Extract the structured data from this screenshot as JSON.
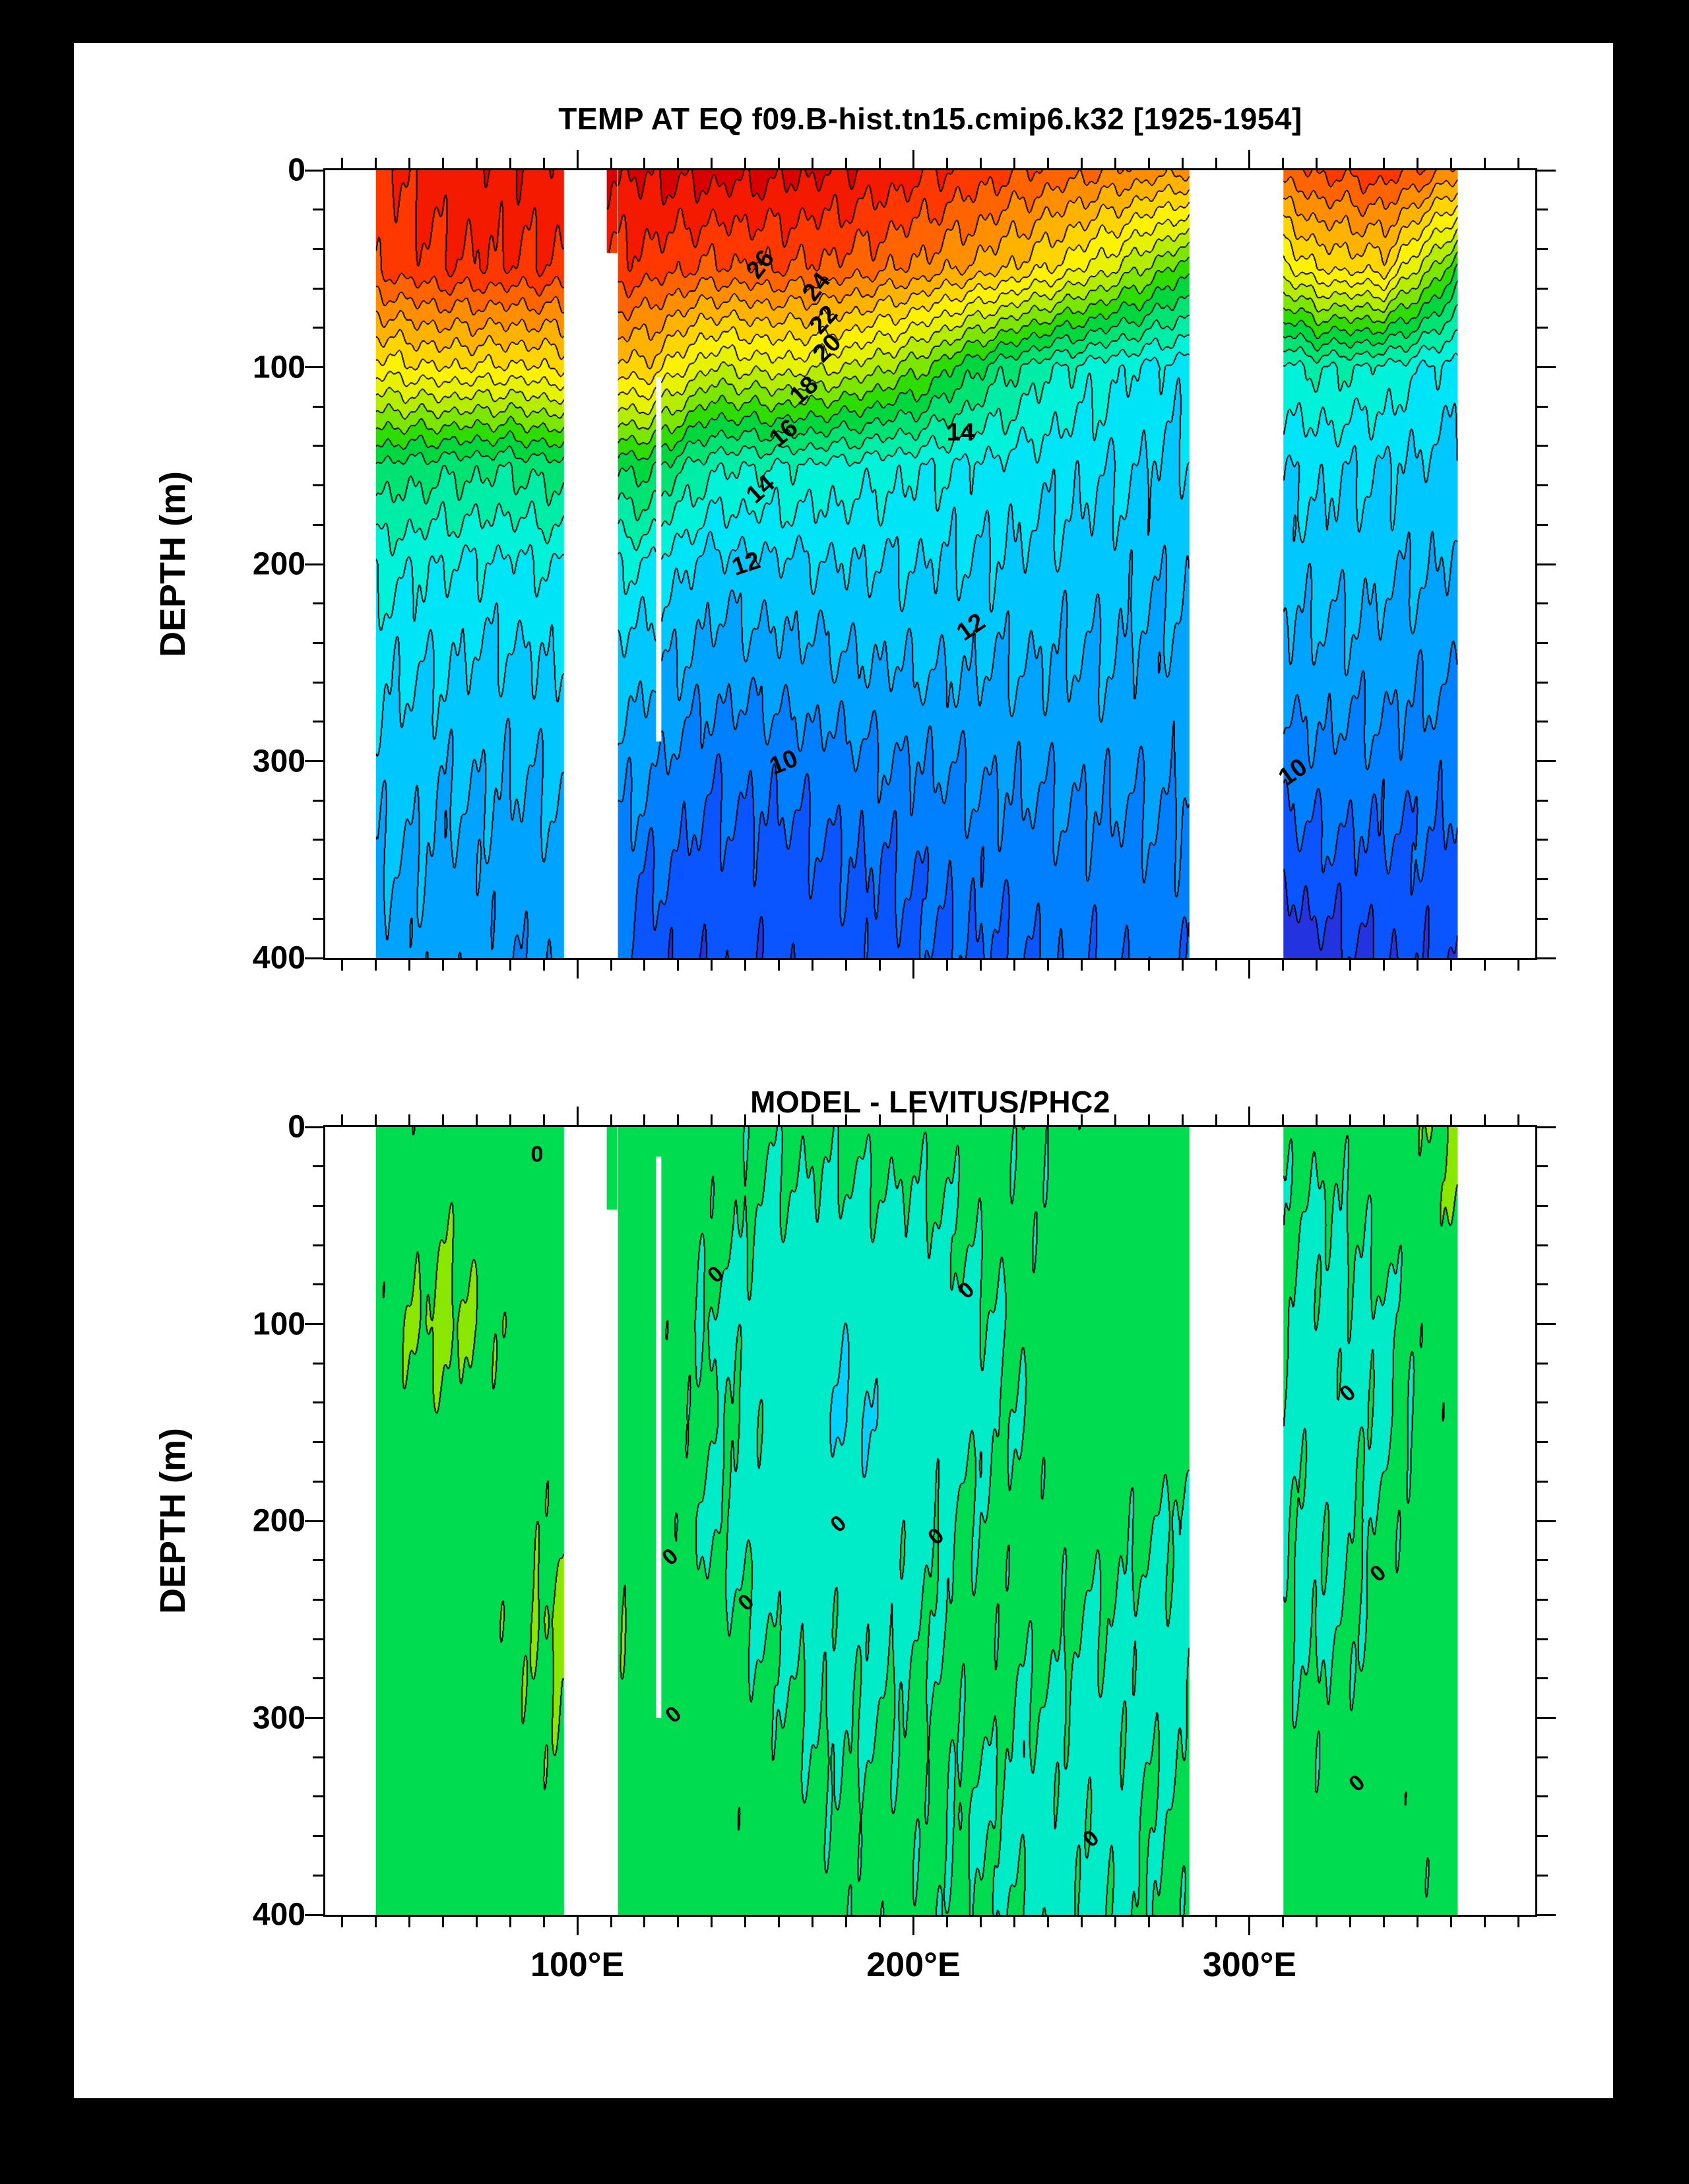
{
  "colors": {
    "frame": "#000000",
    "page": "#ffffff",
    "contour_line": "#000000"
  },
  "axes": {
    "x": {
      "min": 25,
      "max": 385,
      "minor_step": 10,
      "major": [
        100,
        200,
        300
      ],
      "tick_labels": [
        {
          "lon": 100,
          "text": "100°E"
        },
        {
          "lon": 200,
          "text": "200°E"
        },
        {
          "lon": 300,
          "text": "300°E"
        }
      ]
    },
    "y": {
      "min": 0,
      "max": 400,
      "minor_step": 20,
      "major": [
        0,
        100,
        200,
        300,
        400
      ]
    }
  },
  "palettes": {
    "temp": {
      "min": 7,
      "step": 1,
      "colors": [
        "#7b3fd4",
        "#2333e0",
        "#0a55ff",
        "#007fff",
        "#00a4ff",
        "#00c8ff",
        "#00e4f8",
        "#00f2d8",
        "#00eda8",
        "#00e372",
        "#00d73e",
        "#2fdc00",
        "#7ce600",
        "#b6ec00",
        "#e6f200",
        "#fff200",
        "#ffd500",
        "#ffb300",
        "#ff8f00",
        "#ff6400",
        "#ff3800",
        "#f31a00",
        "#d90000"
      ]
    },
    "diff": {
      "min": -2,
      "step": 1,
      "colors": [
        "#00d2ff",
        "#00ecc8",
        "#00dc50",
        "#8ae800"
      ]
    }
  },
  "chart_data": [
    {
      "type": "heatmap",
      "title": "TEMP AT EQ f09.B-hist.tn15.cmip6.k32 [1925-1954]",
      "ylabel": "DEPTH (m)",
      "palette": "temp",
      "xlim": [
        25,
        385
      ],
      "ylim": [
        0,
        400
      ],
      "y_inverted": true,
      "contour_interval": 1,
      "x": [
        40,
        60,
        80,
        100,
        120,
        140,
        160,
        180,
        200,
        220,
        240,
        260,
        280,
        300,
        320,
        340,
        352,
        362
      ],
      "depth": [
        0,
        50,
        100,
        150,
        200,
        250,
        300,
        350,
        400
      ],
      "values": [
        [
          27.8,
          28.6,
          28.8,
          28.8,
          29.2,
          29.4,
          29.3,
          29.0,
          28.4,
          27.6,
          26.8,
          26.0,
          25.2,
          26.0,
          27.2,
          27.6,
          26.8,
          25.6
        ],
        [
          27.2,
          27.9,
          27.9,
          27.8,
          27.6,
          26.8,
          27.0,
          26.6,
          25.8,
          24.6,
          23.0,
          21.0,
          18.5,
          20.0,
          23.0,
          23.4,
          20.5,
          18.0
        ],
        [
          22.5,
          23.0,
          22.8,
          23.2,
          23.8,
          21.0,
          21.5,
          21.0,
          19.5,
          17.0,
          15.2,
          14.2,
          13.5,
          14.0,
          15.2,
          14.8,
          14.0,
          13.6
        ],
        [
          16.8,
          16.4,
          16.2,
          16.8,
          17.5,
          15.2,
          15.0,
          14.6,
          14.2,
          13.8,
          13.4,
          13.1,
          12.8,
          13.0,
          13.3,
          13.0,
          12.8,
          12.6
        ],
        [
          14.4,
          14.0,
          13.8,
          14.2,
          14.0,
          12.6,
          12.8,
          13.0,
          13.0,
          12.9,
          12.7,
          12.5,
          12.2,
          12.4,
          12.5,
          12.3,
          12.1,
          11.9
        ],
        [
          13.3,
          13.0,
          12.8,
          13.1,
          12.4,
          11.5,
          11.6,
          11.9,
          12.1,
          12.1,
          12.0,
          11.9,
          11.7,
          11.6,
          11.7,
          11.5,
          11.3,
          11.1
        ],
        [
          12.6,
          12.3,
          12.1,
          12.3,
          11.2,
          10.3,
          10.4,
          10.7,
          11.0,
          11.2,
          11.3,
          11.3,
          11.2,
          10.4,
          10.7,
          10.6,
          10.5,
          10.3
        ],
        [
          12.1,
          11.8,
          11.6,
          11.7,
          10.2,
          9.6,
          9.6,
          9.9,
          10.2,
          10.4,
          10.6,
          10.7,
          10.7,
          9.2,
          9.7,
          9.8,
          9.8,
          9.7
        ],
        [
          11.7,
          11.4,
          11.2,
          11.2,
          9.4,
          9.2,
          9.3,
          9.5,
          9.7,
          9.9,
          10.1,
          10.2,
          10.3,
          7.6,
          8.6,
          9.0,
          9.2,
          9.2
        ]
      ],
      "masks": [
        {
          "lon": [
            96,
            112
          ],
          "z": [
            0,
            400
          ]
        },
        {
          "lon": [
            123.5,
            125
          ],
          "z": [
            105,
            290
          ]
        },
        {
          "lon": [
            282,
            310
          ],
          "z": [
            0,
            400
          ]
        }
      ],
      "notches": [
        {
          "lon": [
            108.8,
            111.8
          ],
          "z": [
            0,
            42
          ]
        },
        {
          "lon": [
            310,
            313
          ],
          "z": [
            0,
            26
          ]
        }
      ],
      "contour_labels": [
        {
          "t": "26",
          "x": 36.0,
          "y": 12.0,
          "r": -52
        },
        {
          "t": "24",
          "x": 40.6,
          "y": 14.8,
          "r": -52
        },
        {
          "t": "22",
          "x": 41.2,
          "y": 19.0,
          "r": -48
        },
        {
          "t": "20",
          "x": 41.5,
          "y": 22.6,
          "r": -45
        },
        {
          "t": "18",
          "x": 39.6,
          "y": 28.0,
          "r": -42
        },
        {
          "t": "16",
          "x": 37.9,
          "y": 33.4,
          "r": -40
        },
        {
          "t": "14",
          "x": 52.5,
          "y": 33.3,
          "r": 0
        },
        {
          "t": "14",
          "x": 36.0,
          "y": 40.5,
          "r": -42
        },
        {
          "t": "12",
          "x": 34.8,
          "y": 50.0,
          "r": -18
        },
        {
          "t": "12",
          "x": 53.4,
          "y": 58.0,
          "r": -35
        },
        {
          "t": "10",
          "x": 37.9,
          "y": 75.2,
          "r": -22
        },
        {
          "t": "10",
          "x": 80.0,
          "y": 76.5,
          "r": -35
        }
      ]
    },
    {
      "type": "heatmap",
      "title": "MODEL - LEVITUS/PHC2",
      "ylabel": "DEPTH (m)",
      "palette": "diff",
      "xlim": [
        25,
        385
      ],
      "ylim": [
        0,
        400
      ],
      "y_inverted": true,
      "contour_interval": 1,
      "x": [
        40,
        60,
        80,
        100,
        120,
        140,
        160,
        180,
        200,
        220,
        240,
        260,
        280,
        300,
        320,
        340,
        352,
        362
      ],
      "depth": [
        0,
        50,
        100,
        150,
        200,
        250,
        300,
        350,
        400
      ],
      "values": [
        [
          0.4,
          0.3,
          0.4,
          0.5,
          0.4,
          0.3,
          0.2,
          0.3,
          0.4,
          0.3,
          0.2,
          0.4,
          0.5,
          0.4,
          0.3,
          0.5,
          0.8,
          1.3
        ],
        [
          0.5,
          0.8,
          0.4,
          0.4,
          0.5,
          0.3,
          -0.2,
          -0.3,
          -0.2,
          0.2,
          0.3,
          0.6,
          0.5,
          0.3,
          -0.2,
          0.3,
          0.6,
          0.9
        ],
        [
          0.6,
          1.3,
          0.7,
          0.4,
          0.6,
          -0.2,
          -0.5,
          -0.8,
          -0.5,
          -0.2,
          0.4,
          0.7,
          0.6,
          0.4,
          -0.3,
          -0.2,
          0.4,
          0.5
        ],
        [
          0.5,
          0.7,
          0.5,
          0.4,
          0.7,
          0.2,
          -0.4,
          -1.1,
          -0.6,
          -0.2,
          0.3,
          0.6,
          0.5,
          0.3,
          -0.4,
          -0.2,
          0.3,
          0.4
        ],
        [
          0.5,
          0.5,
          0.6,
          0.9,
          0.5,
          -0.2,
          -0.3,
          -0.5,
          -0.3,
          0.2,
          0.4,
          0.4,
          -0.2,
          0.2,
          -0.3,
          0.2,
          0.4,
          0.5
        ],
        [
          0.6,
          0.5,
          0.7,
          1.4,
          0.6,
          0.3,
          -0.2,
          -0.3,
          -0.2,
          0.3,
          0.3,
          -0.2,
          -0.3,
          0.3,
          -0.2,
          0.3,
          0.5,
          0.6
        ],
        [
          0.5,
          0.6,
          0.6,
          1.0,
          0.5,
          0.4,
          0.2,
          -0.2,
          0.2,
          0.3,
          -0.2,
          -0.3,
          -0.2,
          0.4,
          0.2,
          0.4,
          0.5,
          0.5
        ],
        [
          0.5,
          0.5,
          0.6,
          0.6,
          0.4,
          0.4,
          0.3,
          0.2,
          0.3,
          -0.2,
          -0.3,
          -0.2,
          0.2,
          0.5,
          0.4,
          0.3,
          0.4,
          0.4
        ],
        [
          0.6,
          0.6,
          0.5,
          0.5,
          0.4,
          0.5,
          0.4,
          0.3,
          0.2,
          0.2,
          -0.2,
          -0.2,
          0.3,
          0.4,
          0.5,
          0.4,
          0.3,
          0.3
        ]
      ],
      "masks": [
        {
          "lon": [
            96,
            112
          ],
          "z": [
            0,
            400
          ]
        },
        {
          "lon": [
            123.5,
            125
          ],
          "z": [
            15,
            300
          ]
        },
        {
          "lon": [
            282,
            310
          ],
          "z": [
            0,
            400
          ]
        }
      ],
      "notches": [
        {
          "lon": [
            108.8,
            111.8
          ],
          "z": [
            0,
            42
          ]
        },
        {
          "lon": [
            310,
            313
          ],
          "z": [
            0,
            26
          ]
        }
      ],
      "contour_labels": [
        {
          "t": "0",
          "x": 17.5,
          "y": 3.5,
          "r": 0
        },
        {
          "t": "0",
          "x": 32.3,
          "y": 18.8,
          "r": -40
        },
        {
          "t": "0",
          "x": 53.0,
          "y": 20.8,
          "r": -40
        },
        {
          "t": "0",
          "x": 84.5,
          "y": 33.8,
          "r": -40
        },
        {
          "t": "0",
          "x": 42.4,
          "y": 50.4,
          "r": -40
        },
        {
          "t": "0",
          "x": 50.5,
          "y": 52.0,
          "r": -40
        },
        {
          "t": "0",
          "x": 28.5,
          "y": 54.6,
          "r": -40
        },
        {
          "t": "0",
          "x": 34.8,
          "y": 60.4,
          "r": -40
        },
        {
          "t": "0",
          "x": 87.0,
          "y": 56.7,
          "r": -40
        },
        {
          "t": "0",
          "x": 28.8,
          "y": 74.6,
          "r": -40
        },
        {
          "t": "0",
          "x": 63.3,
          "y": 90.4,
          "r": -40
        },
        {
          "t": "0",
          "x": 85.3,
          "y": 83.3,
          "r": -40
        }
      ]
    }
  ]
}
